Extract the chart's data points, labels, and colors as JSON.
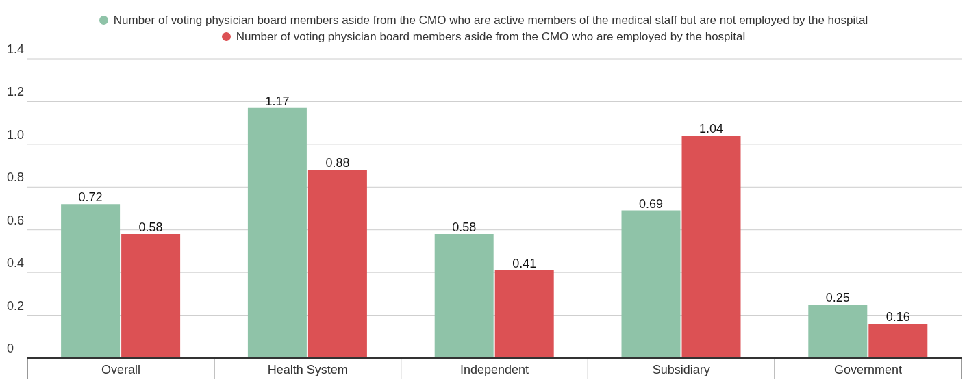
{
  "chart_data": {
    "type": "bar",
    "categories": [
      "Overall",
      "Health System",
      "Independent",
      "Subsidiary",
      "Government"
    ],
    "series": [
      {
        "name": "Number of voting physician board members aside from the CMO who are active members of the medical staff but are not employed by the hospital",
        "color": "#8fc3a8",
        "values": [
          0.72,
          1.17,
          0.58,
          0.69,
          0.25
        ]
      },
      {
        "name": "Number of voting physician board members aside from the CMO who are employed by the hospital",
        "color": "#dc5154",
        "values": [
          0.58,
          0.88,
          0.41,
          1.04,
          0.16
        ]
      }
    ],
    "ylim": [
      0,
      1.4
    ],
    "yticks": [
      0,
      0.2,
      0.4,
      0.6,
      0.8,
      {
        "value": 1,
        "label": "1.0"
      },
      1.2,
      1.4
    ],
    "grid": "y",
    "legend": "top",
    "data_labels": true
  }
}
